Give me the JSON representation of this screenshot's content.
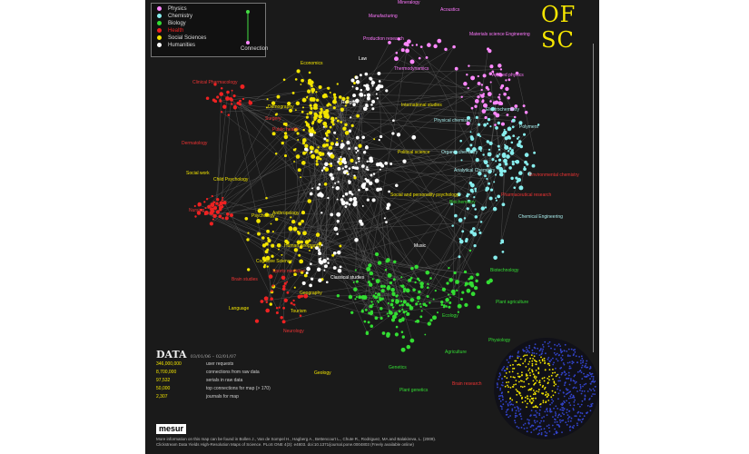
{
  "title_fragment": "OF SC",
  "legend": {
    "items": [
      {
        "label": "Physics",
        "color": "#ff88ff"
      },
      {
        "label": "Chemistry",
        "color": "#88eeee"
      },
      {
        "label": "Biology",
        "color": "#33dd33"
      },
      {
        "label": "Health",
        "color": "#ee2222"
      },
      {
        "label": "Social Sciences",
        "color": "#f2e400"
      },
      {
        "label": "Humanities",
        "color": "#ffffff"
      }
    ],
    "connection_label": "Connection"
  },
  "data_panel": {
    "title": "DATA",
    "date_range": "03/01/06 – 02/01/07",
    "stats": [
      {
        "value": "346,000,000",
        "label": "user requests"
      },
      {
        "value": "8,700,000",
        "label": "connections from raw data"
      },
      {
        "value": "97,532",
        "label": "serials in raw data"
      },
      {
        "value": "50,000",
        "label": "top connections for map (> 170)"
      },
      {
        "value": "2,307",
        "label": "journals for map"
      }
    ]
  },
  "logo_text": "mesur",
  "footer_lines": [
    "More information on this map can be found in Bollen J., Van de Sompel H., Hagberg A., Bettencourt L., Chute R., Rodriguez, MA and Balakireva, L. (2009).",
    "Clickstream Data Yields High-Resolution Maps of Science. PLoS ONE 4(3): e4803. doi:10.1371/journal.pone.0004803 (Freely available online)"
  ],
  "map_labels": [
    {
      "text": "Mineralogy",
      "color": "#ff77ff"
    },
    {
      "text": "Acoustics",
      "color": "#ff77ff"
    },
    {
      "text": "Manufacturing",
      "color": "#ff77ff"
    },
    {
      "text": "Production research",
      "color": "#ff77ff"
    },
    {
      "text": "Materials science Engineering",
      "color": "#ff77ff"
    },
    {
      "text": "Thermodynamics",
      "color": "#ff77ff"
    },
    {
      "text": "Applied physics",
      "color": "#ff77ff"
    },
    {
      "text": "Electrochemistry",
      "color": "#aaeeee"
    },
    {
      "text": "Polymers",
      "color": "#aaeeee"
    },
    {
      "text": "Physical chemistry",
      "color": "#aaeeee"
    },
    {
      "text": "Organic chemistry",
      "color": "#aaeeee"
    },
    {
      "text": "Analytical Chemistry",
      "color": "#aaeeee"
    },
    {
      "text": "Environmental chemistry",
      "color": "#ee3333"
    },
    {
      "text": "Pharmaceutical research",
      "color": "#ee3333"
    },
    {
      "text": "Chemical Engineering",
      "color": "#aaeeee"
    },
    {
      "text": "Biochemistry",
      "color": "#33dd33"
    },
    {
      "text": "Biotechnology",
      "color": "#33dd33"
    },
    {
      "text": "Plant agriculture",
      "color": "#33dd33"
    },
    {
      "text": "Ecology",
      "color": "#33dd33"
    },
    {
      "text": "Physiology",
      "color": "#33dd33"
    },
    {
      "text": "Agriculture",
      "color": "#33dd33"
    },
    {
      "text": "Genetics",
      "color": "#33dd33"
    },
    {
      "text": "Plant genetics",
      "color": "#33dd33"
    },
    {
      "text": "Brain research",
      "color": "#ee3333"
    },
    {
      "text": "Geology",
      "color": "#f2e400"
    },
    {
      "text": "Economics",
      "color": "#f2e400"
    },
    {
      "text": "Law",
      "color": "#ffffff"
    },
    {
      "text": "International studies",
      "color": "#f2e400"
    },
    {
      "text": "Political science",
      "color": "#f2e400"
    },
    {
      "text": "Social and personality psychology",
      "color": "#f2e400"
    },
    {
      "text": "Music",
      "color": "#ffffff"
    },
    {
      "text": "Psychology",
      "color": "#f2e400"
    },
    {
      "text": "Anthropology",
      "color": "#f2e400"
    },
    {
      "text": "Human geography",
      "color": "#f2e400"
    },
    {
      "text": "Cognitive Science",
      "color": "#f2e400"
    },
    {
      "text": "Sports medicine",
      "color": "#ee3333"
    },
    {
      "text": "Classical studies",
      "color": "#ffffff"
    },
    {
      "text": "Geography",
      "color": "#f2e400"
    },
    {
      "text": "Tourism",
      "color": "#f2e400"
    },
    {
      "text": "Neurology",
      "color": "#ee3333"
    },
    {
      "text": "Brain studies",
      "color": "#ee3333"
    },
    {
      "text": "Language",
      "color": "#f2e400"
    },
    {
      "text": "Nursing",
      "color": "#ee3333"
    },
    {
      "text": "Child Psychology",
      "color": "#f2e400"
    },
    {
      "text": "Social work",
      "color": "#f2e400"
    },
    {
      "text": "Dermatology",
      "color": "#ee3333"
    },
    {
      "text": "Public health",
      "color": "#ee3333"
    },
    {
      "text": "Demography",
      "color": "#f2e400"
    },
    {
      "text": "Clinical Pharmacology",
      "color": "#ee3333"
    },
    {
      "text": "Surgery",
      "color": "#ee3333"
    },
    {
      "text": "Religion",
      "color": "#ffffff"
    }
  ]
}
